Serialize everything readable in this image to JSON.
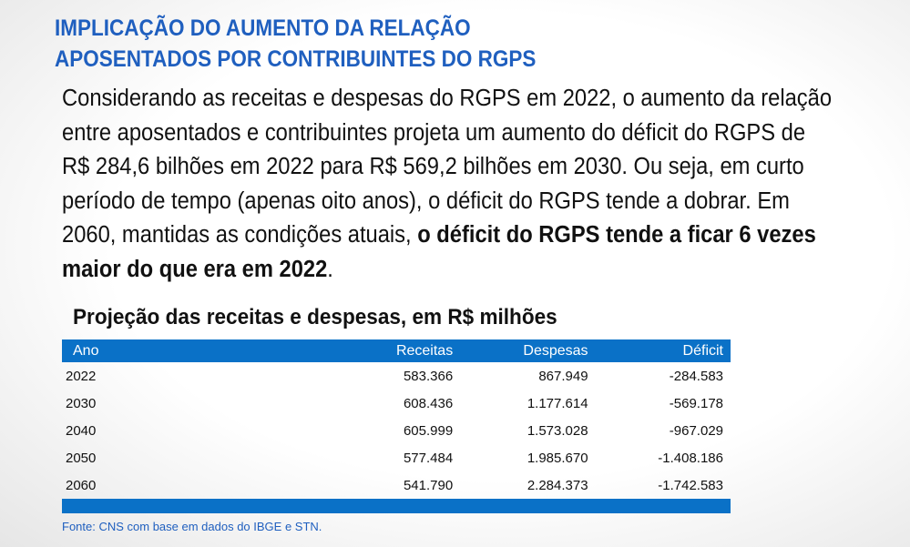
{
  "title": {
    "line1": "IMPLICAÇÃO DO AUMENTO DA RELAÇÃO",
    "line2": "APOSENTADOS POR CONTRIBUINTES DO RGPS"
  },
  "body": {
    "text_regular": "Considerando as receitas e despesas do RGPS em 2022, o aumento da relação entre aposentados e contribuintes projeta um aumento do déficit do RGPS de R$ 284,6 bilhões em 2022 para R$ 569,2 bilhões em 2030. Ou seja, em curto período de tempo (apenas oito anos), o déficit do RGPS tende a dobrar. Em 2060, mantidas as condições atuais, ",
    "text_bold": "o déficit do RGPS tende a ficar 6 vezes maior do que era em 2022",
    "text_end": "."
  },
  "table": {
    "title": "Projeção das receitas e despesas, em R$ milhões",
    "headers": [
      "Ano",
      "Receitas",
      "Despesas",
      "Déficit"
    ],
    "rows": [
      [
        "2022",
        "583.366",
        "867.949",
        "-284.583"
      ],
      [
        "2030",
        "608.436",
        "1.177.614",
        "-569.178"
      ],
      [
        "2040",
        "605.999",
        "1.573.028",
        "-967.029"
      ],
      [
        "2050",
        "577.484",
        "1.985.670",
        "-1.408.186"
      ],
      [
        "2060",
        "541.790",
        "2.284.373",
        "-1.742.583"
      ]
    ],
    "source": "Fonte: CNS com base em dados do IBGE e STN."
  },
  "colors": {
    "accent_blue": "#0a71c7",
    "title_blue": "#1f5fbf"
  }
}
